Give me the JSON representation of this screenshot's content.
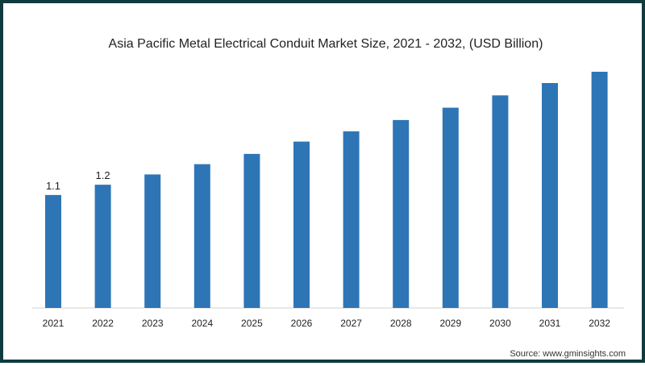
{
  "chart_data": {
    "type": "bar",
    "title": "Asia Pacific Metal Electrical Conduit Market Size, 2021 - 2032, (USD Billion)",
    "categories": [
      "2021",
      "2022",
      "2023",
      "2024",
      "2025",
      "2026",
      "2027",
      "2028",
      "2029",
      "2030",
      "2031",
      "2032"
    ],
    "values": [
      1.1,
      1.2,
      1.3,
      1.4,
      1.5,
      1.62,
      1.72,
      1.83,
      1.95,
      2.07,
      2.19,
      2.3
    ],
    "data_labels": [
      "1.1",
      "1.2",
      "",
      "",
      "",
      "",
      "",
      "",
      "",
      "",
      "",
      ""
    ],
    "xlabel": "",
    "ylabel": "",
    "ylim": [
      0,
      2.3
    ],
    "grid": false,
    "legend": "none",
    "bar_color": "#2e75b6"
  },
  "source": "Source: www.gminsights.com"
}
